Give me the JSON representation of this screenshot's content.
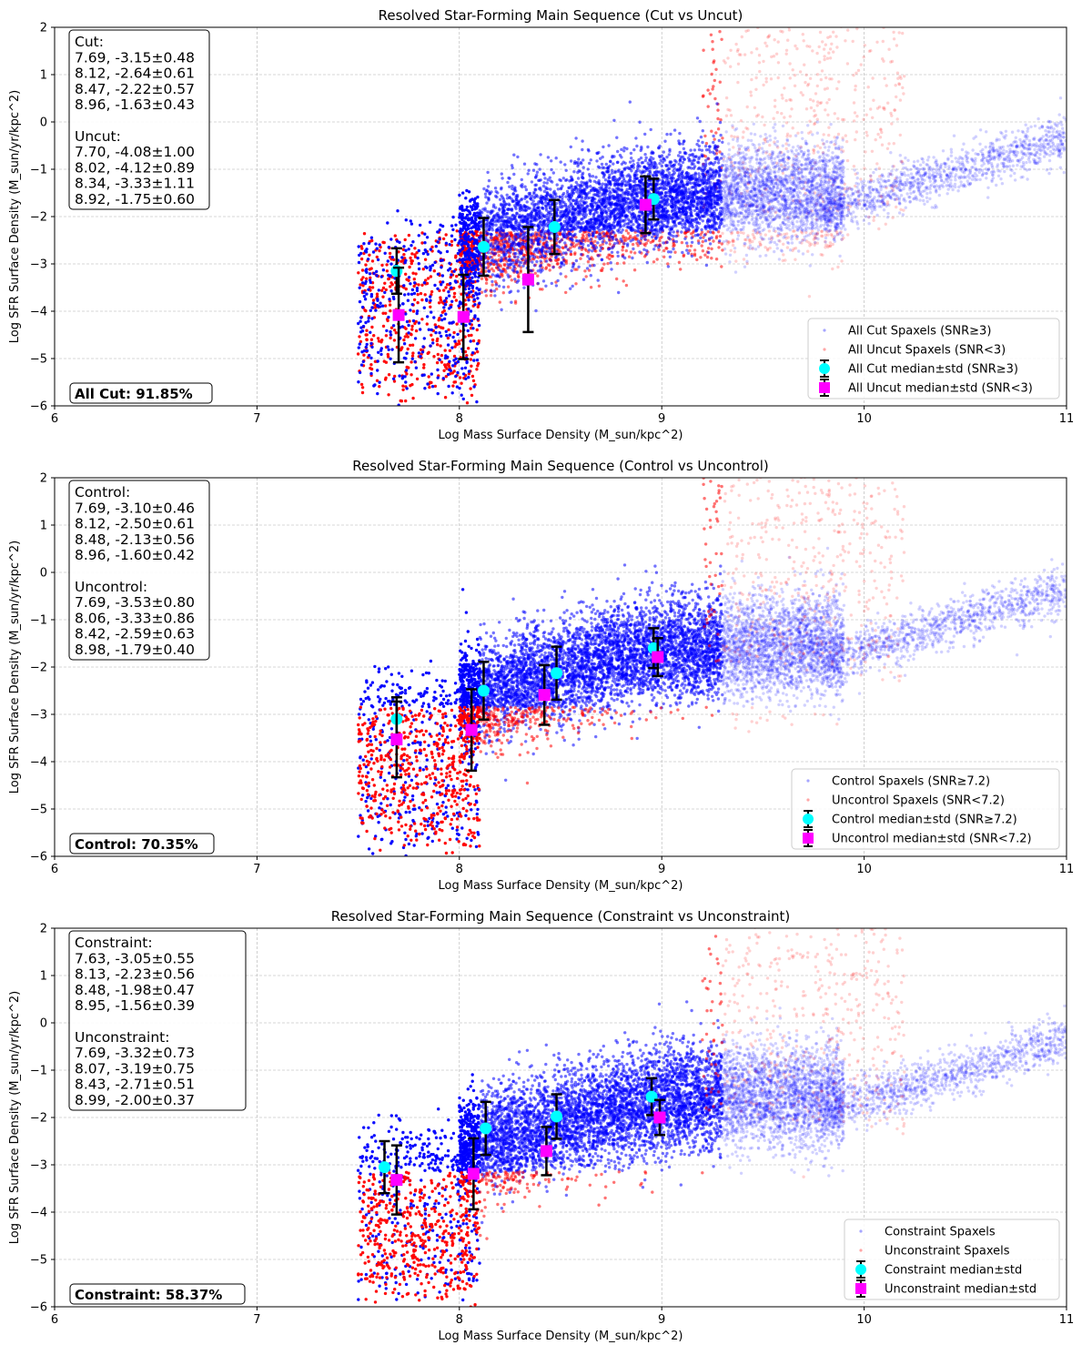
{
  "colors": {
    "selected": "#0000ff",
    "unselected": "#ff0000",
    "selected_median": "#00ffff",
    "unselected_median": "#ff00ff",
    "errorbar": "#000000",
    "grid": "#b0b0b0"
  },
  "chart_data": [
    {
      "type": "scatter",
      "title": "Resolved Star-Forming Main Sequence (Cut vs Uncut)",
      "xlabel": "Log Mass Surface Density (M_sun/kpc^2)",
      "ylabel": "Log SFR Surface Density (M_sun/yr/kpc^2)",
      "xlim": [
        6,
        11
      ],
      "ylim": [
        -6,
        2
      ],
      "xticks": [
        "6",
        "7",
        "8",
        "9",
        "10",
        "11"
      ],
      "yticks": [
        "2",
        "1",
        "0",
        "−1",
        "−2",
        "−3",
        "−4",
        "−5",
        "−6"
      ],
      "grid": true,
      "legend_position": "lower right",
      "stats_text": [
        "Cut:",
        "7.69, -3.15±0.48",
        "8.12, -2.64±0.61",
        "8.47, -2.22±0.57",
        "8.96, -1.63±0.43",
        "",
        "Uncut:",
        "7.70, -4.08±1.00",
        "8.02, -4.12±0.89",
        "8.34, -3.33±1.11",
        "8.92, -1.75±0.60"
      ],
      "summary": "All Cut: 91.85%",
      "series": [
        {
          "name": "All Cut Spaxels (SNR≥3)",
          "kind": "scatter",
          "color": "blue"
        },
        {
          "name": "All Uncut Spaxels (SNR<3)",
          "kind": "scatter",
          "color": "red"
        },
        {
          "name": "All Cut median±std (SNR≥3)",
          "kind": "median",
          "marker": "circle",
          "color": "cyan",
          "x": [
            7.69,
            8.12,
            8.47,
            8.96
          ],
          "y": [
            -3.15,
            -2.64,
            -2.22,
            -1.63
          ],
          "yerr": [
            0.48,
            0.61,
            0.57,
            0.43
          ]
        },
        {
          "name": "All Uncut median±std (SNR<3)",
          "kind": "median",
          "marker": "square",
          "color": "magenta",
          "x": [
            7.7,
            8.02,
            8.34,
            8.92
          ],
          "y": [
            -4.08,
            -4.12,
            -3.33,
            -1.75
          ],
          "yerr": [
            1.0,
            0.89,
            1.11,
            0.6
          ]
        }
      ]
    },
    {
      "type": "scatter",
      "title": "Resolved Star-Forming Main Sequence (Control vs Uncontrol)",
      "xlabel": "Log Mass Surface Density (M_sun/kpc^2)",
      "ylabel": "Log SFR Surface Density (M_sun/yr/kpc^2)",
      "xlim": [
        6,
        11
      ],
      "ylim": [
        -6,
        2
      ],
      "xticks": [
        "6",
        "7",
        "8",
        "9",
        "10",
        "11"
      ],
      "yticks": [
        "2",
        "1",
        "0",
        "−1",
        "−2",
        "−3",
        "−4",
        "−5",
        "−6"
      ],
      "grid": true,
      "legend_position": "lower right",
      "stats_text": [
        "Control:",
        "7.69, -3.10±0.46",
        "8.12, -2.50±0.61",
        "8.48, -2.13±0.56",
        "8.96, -1.60±0.42",
        "",
        "Uncontrol:",
        "7.69, -3.53±0.80",
        "8.06, -3.33±0.86",
        "8.42, -2.59±0.63",
        "8.98, -1.79±0.40"
      ],
      "summary": "Control: 70.35%",
      "series": [
        {
          "name": "Control Spaxels (SNR≥7.2)",
          "kind": "scatter",
          "color": "blue"
        },
        {
          "name": "Uncontrol Spaxels (SNR<7.2)",
          "kind": "scatter",
          "color": "red"
        },
        {
          "name": "Control median±std (SNR≥7.2)",
          "kind": "median",
          "marker": "circle",
          "color": "cyan",
          "x": [
            7.69,
            8.12,
            8.48,
            8.96
          ],
          "y": [
            -3.1,
            -2.5,
            -2.13,
            -1.6
          ],
          "yerr": [
            0.46,
            0.61,
            0.56,
            0.42
          ]
        },
        {
          "name": "Uncontrol median±std (SNR<7.2)",
          "kind": "median",
          "marker": "square",
          "color": "magenta",
          "x": [
            7.69,
            8.06,
            8.42,
            8.98
          ],
          "y": [
            -3.53,
            -3.33,
            -2.59,
            -1.79
          ],
          "yerr": [
            0.8,
            0.86,
            0.63,
            0.4
          ]
        }
      ]
    },
    {
      "type": "scatter",
      "title": "Resolved Star-Forming Main Sequence (Constraint vs Unconstraint)",
      "xlabel": "Log Mass Surface Density (M_sun/kpc^2)",
      "ylabel": "Log SFR Surface Density (M_sun/yr/kpc^2)",
      "xlim": [
        6,
        11
      ],
      "ylim": [
        -6,
        2
      ],
      "xticks": [
        "6",
        "7",
        "8",
        "9",
        "10",
        "11"
      ],
      "yticks": [
        "2",
        "1",
        "0",
        "−1",
        "−2",
        "−3",
        "−4",
        "−5",
        "−6"
      ],
      "grid": true,
      "legend_position": "lower right",
      "stats_text": [
        "Constraint:",
        "7.63, -3.05±0.55",
        "8.13, -2.23±0.56",
        "8.48, -1.98±0.47",
        "8.95, -1.56±0.39",
        "",
        "Unconstraint:",
        "7.69, -3.32±0.73",
        "8.07, -3.19±0.75",
        "8.43, -2.71±0.51",
        "8.99, -2.00±0.37"
      ],
      "summary": "Constraint: 58.37%",
      "series": [
        {
          "name": "Constraint Spaxels",
          "kind": "scatter",
          "color": "blue"
        },
        {
          "name": "Unconstraint Spaxels",
          "kind": "scatter",
          "color": "red"
        },
        {
          "name": "Constraint median±std",
          "kind": "median",
          "marker": "circle",
          "color": "cyan",
          "x": [
            7.63,
            8.13,
            8.48,
            8.95
          ],
          "y": [
            -3.05,
            -2.23,
            -1.98,
            -1.56
          ],
          "yerr": [
            0.55,
            0.56,
            0.47,
            0.39
          ]
        },
        {
          "name": "Unconstraint median±std",
          "kind": "median",
          "marker": "square",
          "color": "magenta",
          "x": [
            7.69,
            8.07,
            8.43,
            8.99
          ],
          "y": [
            -3.32,
            -3.19,
            -2.71,
            -2.0
          ],
          "yerr": [
            0.73,
            0.75,
            0.51,
            0.37
          ]
        }
      ]
    }
  ]
}
